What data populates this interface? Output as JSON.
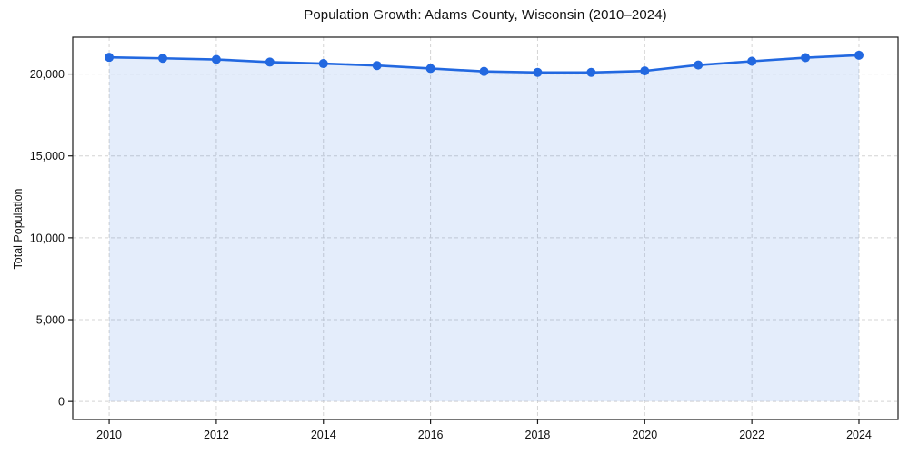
{
  "chart_data": {
    "type": "area",
    "title": "Population Growth: Adams County, Wisconsin (2010–2024)",
    "xlabel": "",
    "ylabel": "Total Population",
    "x": [
      2010,
      2011,
      2012,
      2013,
      2014,
      2015,
      2016,
      2017,
      2018,
      2019,
      2020,
      2021,
      2022,
      2023,
      2024
    ],
    "values": [
      21020,
      20960,
      20890,
      20730,
      20640,
      20520,
      20340,
      20160,
      20100,
      20100,
      20190,
      20550,
      20780,
      21000,
      21150
    ],
    "xticks": [
      2010,
      2012,
      2014,
      2016,
      2018,
      2020,
      2022,
      2024
    ],
    "yticks": [
      0,
      5000,
      10000,
      15000,
      20000
    ],
    "ytick_labels": [
      "0",
      "5,000",
      "10,000",
      "15,000",
      "20,000"
    ],
    "xlim": [
      2009.32,
      2024.73
    ],
    "ylim": [
      -1100,
      22250
    ],
    "grid": true,
    "legend": "none",
    "colors": {
      "line": "#2268e0",
      "marker": "#2268e0",
      "area_fill": "rgba(34,104,224,0.12)",
      "grid": "#d4d4d4",
      "spine": "#1a1a1a",
      "text": "#111111",
      "background": "#ffffff"
    },
    "style": {
      "line_width": 2.6,
      "marker_radius": 5,
      "grid_dash": "4 3"
    }
  }
}
